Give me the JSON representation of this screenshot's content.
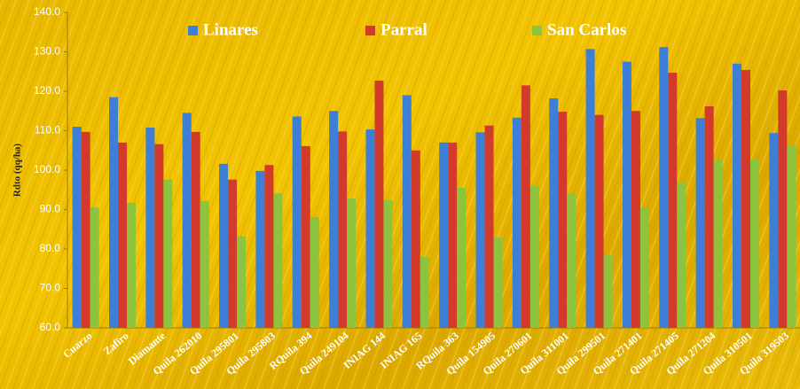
{
  "chart_data": {
    "type": "bar",
    "y_label": "Rdto (qq/ha)",
    "categories": [
      "Cuarzo",
      "Zafiro",
      "Diamante",
      "Quila 262010",
      "Quila 295801",
      "Quila 295803",
      "RQuila 394",
      "Quila 249104",
      "INIAG 144",
      "INIAG 165",
      "RQuila 363",
      "Quila 154905",
      "Quila 270601",
      "Quila 311001",
      "Quila 299501",
      "Quila 271401",
      "Quila 271405",
      "Quila 271204",
      "Quila 310501",
      "Quila 319503"
    ],
    "series": [
      {
        "name": "Linares",
        "color": "#3d7fd6",
        "values": [
          111,
          118.5,
          110.8,
          114.5,
          101.6,
          99.8,
          113.6,
          115,
          110.3,
          119,
          107,
          109.6,
          113.3,
          118.2,
          130.7,
          127.5,
          131.2,
          113.2,
          127,
          109.4
        ]
      },
      {
        "name": "Parral",
        "color": "#d23a2c",
        "values": [
          109.7,
          107,
          106.6,
          109.7,
          97.6,
          101.3,
          106.1,
          109.8,
          122.7,
          105,
          107,
          111.3,
          121.5,
          114.8,
          114,
          115,
          124.7,
          116.2,
          125.4,
          120.2
        ]
      },
      {
        "name": "San Carlos",
        "color": "#8cc43e",
        "values": [
          90.5,
          91.7,
          97.6,
          92.2,
          83.2,
          94.1,
          88.1,
          92.8,
          92.4,
          78,
          95.5,
          82.9,
          96,
          94,
          78.4,
          90.5,
          96.8,
          102.6,
          102.7,
          106.2
        ]
      }
    ],
    "ylim": [
      60,
      140
    ],
    "yticks": [
      {
        "value": 60,
        "label": "60.0"
      },
      {
        "value": 70,
        "label": "70.0"
      },
      {
        "value": 80,
        "label": "80.0"
      },
      {
        "value": 90,
        "label": "90.0"
      },
      {
        "value": 100,
        "label": "100.0"
      },
      {
        "value": 110,
        "label": "110.0"
      },
      {
        "value": 120,
        "label": "120.0"
      },
      {
        "value": 130,
        "label": "130.0"
      },
      {
        "value": 140,
        "label": "140.0"
      }
    ],
    "legend": "top"
  }
}
